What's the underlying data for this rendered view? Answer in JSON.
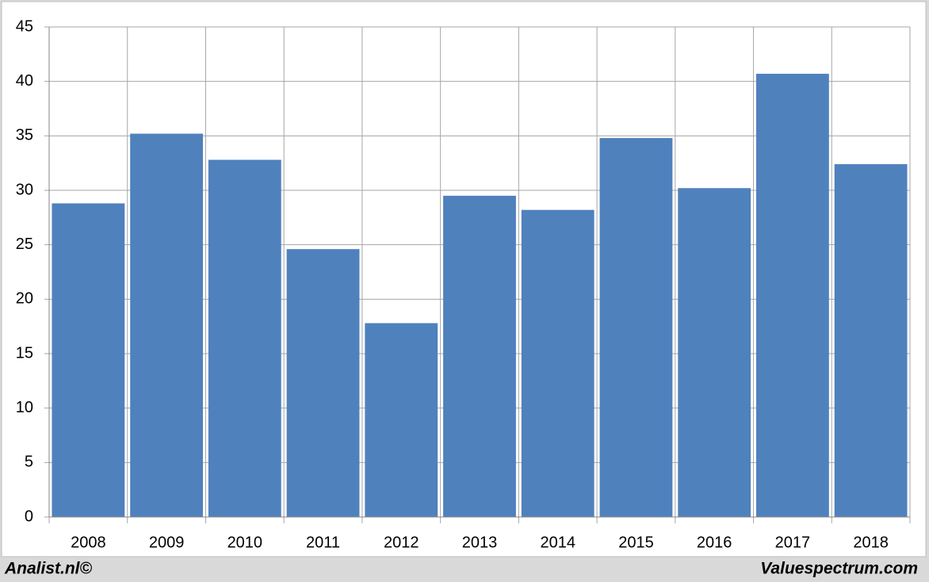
{
  "chart_data": {
    "type": "bar",
    "categories": [
      "2008",
      "2009",
      "2010",
      "2011",
      "2012",
      "2013",
      "2014",
      "2015",
      "2016",
      "2017",
      "2018"
    ],
    "values": [
      28.8,
      35.2,
      32.8,
      24.6,
      17.8,
      29.5,
      28.2,
      34.8,
      30.2,
      40.7,
      32.4
    ],
    "color": "#4f81bd",
    "ylim": [
      0,
      45
    ],
    "yticks": [
      0,
      5,
      10,
      15,
      20,
      25,
      30,
      35,
      40,
      45
    ],
    "grid": true
  },
  "credits": {
    "left": "Analist.nl©",
    "right": "Valuespectrum.com"
  }
}
